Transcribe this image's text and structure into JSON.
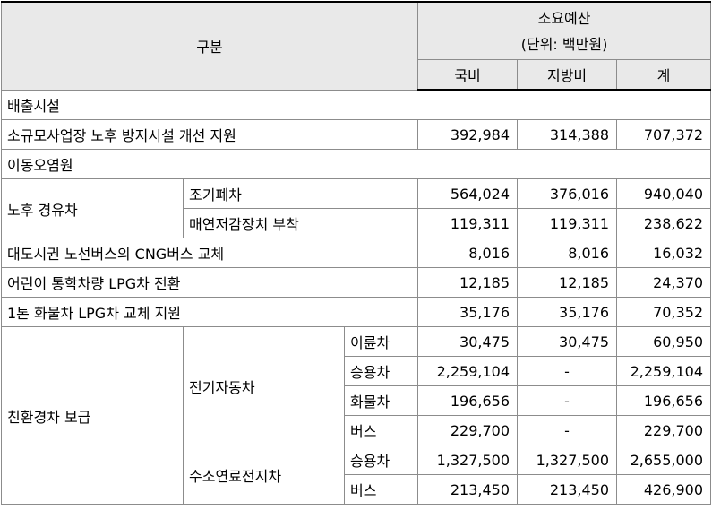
{
  "header": {
    "category": "구분",
    "budget_title": "소요예산",
    "budget_unit": "(단위: 백만원)",
    "col_national": "국비",
    "col_local": "지방비",
    "col_total": "계"
  },
  "sections": {
    "emission_facility": "배출시설",
    "mobile_source": "이동오염원"
  },
  "rows": {
    "small_biz": {
      "label": "소규모사업장 노후 방지시설 개선 지원",
      "national": "392,984",
      "local": "314,388",
      "total": "707,372"
    },
    "old_diesel": {
      "label": "노후 경유차"
    },
    "early_scrap": {
      "label": "조기폐차",
      "national": "564,024",
      "local": "376,016",
      "total": "940,040"
    },
    "dpf": {
      "label": "매연저감장치 부착",
      "national": "119,311",
      "local": "119,311",
      "total": "238,622"
    },
    "cng_bus": {
      "label": "대도시권 노선버스의 CNG버스 교체",
      "national": "8,016",
      "local": "8,016",
      "total": "16,032"
    },
    "school_lpg": {
      "label": "어린이 통학차량 LPG차 전환",
      "national": "12,185",
      "local": "12,185",
      "total": "24,370"
    },
    "truck_lpg": {
      "label": "1톤 화물차 LPG차 교체 지원",
      "national": "35,176",
      "local": "35,176",
      "total": "70,352"
    },
    "eco_car": {
      "label": "친환경차 보급"
    },
    "ev": {
      "label": "전기자동차"
    },
    "ev_two_wheel": {
      "label": "이륜차",
      "national": "30,475",
      "local": "30,475",
      "total": "60,950"
    },
    "ev_car": {
      "label": "승용차",
      "national": "2,259,104",
      "local": "-",
      "total": "2,259,104"
    },
    "ev_truck": {
      "label": "화물차",
      "national": "196,656",
      "local": "-",
      "total": "196,656"
    },
    "ev_bus": {
      "label": "버스",
      "national": "229,700",
      "local": "-",
      "total": "229,700"
    },
    "fcev": {
      "label": "수소연료전지차"
    },
    "fcev_car": {
      "label": "승용차",
      "national": "1,327,500",
      "local": "1,327,500",
      "total": "2,655,000"
    },
    "fcev_bus": {
      "label": "버스",
      "national": "213,450",
      "local": "213,450",
      "total": "426,900"
    }
  }
}
